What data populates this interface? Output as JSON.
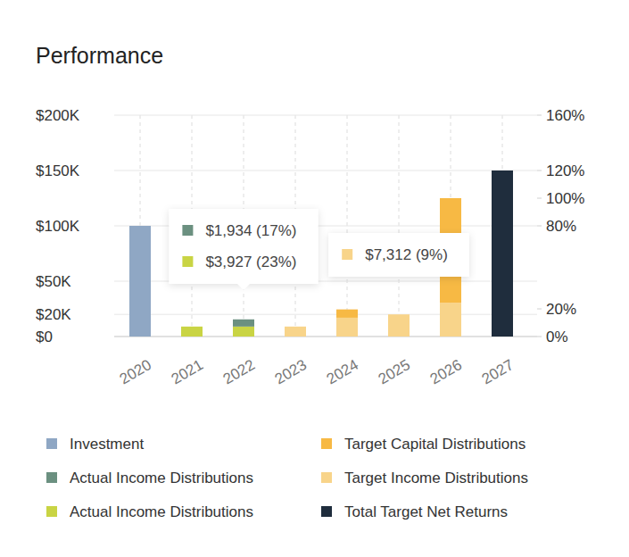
{
  "chart_data": {
    "type": "bar",
    "title": "Performance",
    "stacked": true,
    "grid": true,
    "legend": "bottom",
    "categories": [
      "2020",
      "2021",
      "2022",
      "2023",
      "2024",
      "2025",
      "2026",
      "2027"
    ],
    "ylim": [
      0,
      200000
    ],
    "yticks": [
      {
        "value": 0,
        "label": "$0"
      },
      {
        "value": 20000,
        "label": "$20K"
      },
      {
        "value": 50000,
        "label": "$50K"
      },
      {
        "value": 100000,
        "label": "$100K"
      },
      {
        "value": 150000,
        "label": "$150K"
      },
      {
        "value": 200000,
        "label": "$200K"
      }
    ],
    "y2lim": [
      0,
      160
    ],
    "y2ticks": [
      {
        "value": 0,
        "label": "0%"
      },
      {
        "value": 20,
        "label": "20%"
      },
      {
        "value": 80,
        "label": "80%"
      },
      {
        "value": 100,
        "label": "100%"
      },
      {
        "value": 120,
        "label": "120%"
      },
      {
        "value": 160,
        "label": "160%"
      }
    ],
    "series": [
      {
        "name": "Investment",
        "color": "#8fa7c4",
        "values": [
          100000,
          null,
          null,
          null,
          null,
          null,
          null,
          null
        ]
      },
      {
        "name": "Actual Income Distributions",
        "color": "#6b9080",
        "values": [
          null,
          null,
          6500,
          null,
          null,
          null,
          null,
          null
        ]
      },
      {
        "name": "Actual Income Distributions",
        "color": "#c9d444",
        "values": [
          null,
          9000,
          9000,
          null,
          null,
          null,
          null,
          null
        ]
      },
      {
        "name": "Target Capital Distributions",
        "color": "#f7b944",
        "values": [
          null,
          null,
          null,
          null,
          7500,
          null,
          94500,
          null
        ]
      },
      {
        "name": "Target Income Distributions",
        "color": "#f8d48a",
        "values": [
          null,
          null,
          null,
          9000,
          17000,
          20000,
          30500,
          null
        ]
      },
      {
        "name": "Total Target Net Returns",
        "color": "#1f2d3d",
        "values": [
          null,
          null,
          null,
          null,
          null,
          null,
          null,
          150000
        ]
      }
    ],
    "annotations": [
      {
        "x": "2022",
        "items": [
          {
            "text": "$1,934 (17%)",
            "color": "#6b9080"
          },
          {
            "text": "$3,927 (23%)",
            "color": "#c9d444"
          }
        ]
      },
      {
        "x": "2025",
        "items": [
          {
            "text": "$7,312 (9%)",
            "color": "#f8d48a"
          }
        ]
      }
    ]
  }
}
